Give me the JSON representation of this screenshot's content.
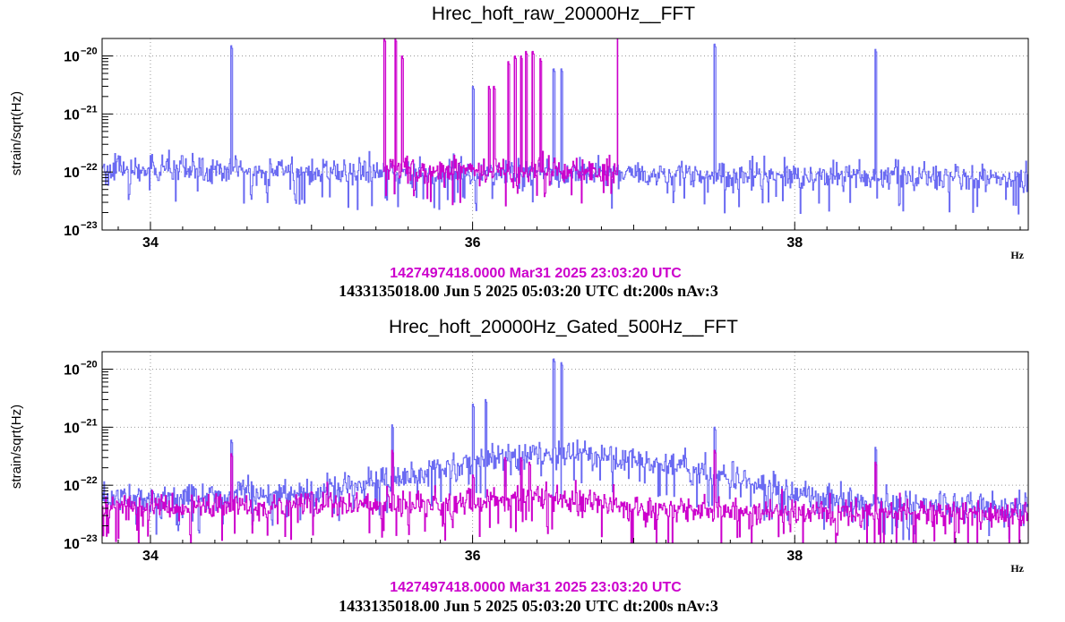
{
  "colors": {
    "reference": "#cc00cc",
    "current": "#6a6af2",
    "grid": "#9a9a9a"
  },
  "panels": [
    {
      "title": "Hrec_hoft_raw_20000Hz__FFT",
      "ylabel": "strain/sqrt(Hz)",
      "xunit": "Hz",
      "stamp_reference": "1427497418.0000 Mar31 2025 23:03:20 UTC",
      "stamp_current": "1433135018.00 Jun 5 2025 05:03:20 UTC dt:200s nAv:3"
    },
    {
      "title": "Hrec_hoft_20000Hz_Gated_500Hz__FFT",
      "ylabel": "strain/sqrt(Hz)",
      "xunit": "Hz",
      "stamp_reference": "1427497418.0000 Mar31 2025 23:03:20 UTC",
      "stamp_current": "1433135018.00 Jun 5 2025 05:03:20 UTC dt:200s nAv:3"
    }
  ],
  "chart_data": [
    {
      "type": "line",
      "title": "Hrec_hoft_raw_20000Hz__FFT",
      "xlabel": "Hz",
      "ylabel": "strain/sqrt(Hz)",
      "yscale": "log",
      "xlim": [
        33.7,
        39.45
      ],
      "ylim": [
        1e-23,
        2e-20
      ],
      "xticks": [
        34,
        36,
        38
      ],
      "xtick_labels": [
        "34",
        "36",
        "38"
      ],
      "yticks": [
        1e-23,
        1e-22,
        1e-21,
        1e-20
      ],
      "ytick_labels": [
        "10",
        "10",
        "10",
        "10"
      ],
      "ytick_exponents": [
        "−23",
        "−22",
        "−21",
        "−20"
      ],
      "grid": true,
      "series": [
        {
          "id": "current",
          "color": "#6a6af2",
          "x_range": [
            33.7,
            39.45
          ],
          "baseline": 9e-23,
          "baseline_trend": [
            [
              33.7,
              1.1e-22
            ],
            [
              36.0,
              9.5e-23
            ],
            [
              39.45,
              8e-23
            ]
          ],
          "peaks": [
            {
              "f": 34.5,
              "a": 1.5e-20
            },
            {
              "f": 36.0,
              "a": 3e-21
            },
            {
              "f": 36.5,
              "a": 6e-21
            },
            {
              "f": 36.55,
              "a": 6e-21
            },
            {
              "f": 37.5,
              "a": 1.6e-20
            },
            {
              "f": 38.5,
              "a": 1.3e-20
            }
          ]
        },
        {
          "id": "reference",
          "color": "#cc00cc",
          "x_range": [
            35.45,
            36.9
          ],
          "baseline": 1e-22,
          "baseline_trend": [
            [
              35.45,
              1.05e-22
            ],
            [
              36.9,
              1e-22
            ]
          ],
          "peaks": [
            {
              "f": 35.45,
              "a": 2e-20
            },
            {
              "f": 35.52,
              "a": 2e-20
            },
            {
              "f": 35.56,
              "a": 1e-20
            },
            {
              "f": 36.1,
              "a": 3e-21
            },
            {
              "f": 36.13,
              "a": 3e-21
            },
            {
              "f": 36.22,
              "a": 8e-21
            },
            {
              "f": 36.26,
              "a": 1e-20
            },
            {
              "f": 36.3,
              "a": 1e-20
            },
            {
              "f": 36.33,
              "a": 1.2e-20
            },
            {
              "f": 36.37,
              "a": 1.2e-20
            },
            {
              "f": 36.42,
              "a": 9e-21
            },
            {
              "f": 36.9,
              "a": 2e-20
            }
          ]
        }
      ]
    },
    {
      "type": "line",
      "title": "Hrec_hoft_20000Hz_Gated_500Hz__FFT",
      "xlabel": "Hz",
      "ylabel": "strain/sqrt(Hz)",
      "yscale": "log",
      "xlim": [
        33.7,
        39.45
      ],
      "ylim": [
        1e-23,
        2e-20
      ],
      "xticks": [
        34,
        36,
        38
      ],
      "xtick_labels": [
        "34",
        "36",
        "38"
      ],
      "yticks": [
        1e-23,
        1e-22,
        1e-21,
        1e-20
      ],
      "ytick_labels": [
        "10",
        "10",
        "10",
        "10"
      ],
      "ytick_exponents": [
        "−23",
        "−22",
        "−21",
        "−20"
      ],
      "grid": true,
      "series": [
        {
          "id": "current",
          "color": "#6a6af2",
          "x_range": [
            33.7,
            39.45
          ],
          "baseline": 6e-23,
          "baseline_trend": [
            [
              33.7,
              6e-23
            ],
            [
              35.0,
              7.5e-23
            ],
            [
              35.5,
              1.2e-22
            ],
            [
              36.0,
              2.5e-22
            ],
            [
              36.5,
              3.5e-22
            ],
            [
              37.0,
              2.8e-22
            ],
            [
              37.5,
              1.6e-22
            ],
            [
              38.0,
              7e-23
            ],
            [
              38.5,
              5e-23
            ],
            [
              39.45,
              4e-23
            ]
          ],
          "peaks": [
            {
              "f": 34.5,
              "a": 6e-22
            },
            {
              "f": 35.5,
              "a": 1.1e-21
            },
            {
              "f": 36.0,
              "a": 2.5e-21
            },
            {
              "f": 36.08,
              "a": 3e-21
            },
            {
              "f": 36.5,
              "a": 1.5e-20
            },
            {
              "f": 36.55,
              "a": 1.3e-20
            },
            {
              "f": 37.5,
              "a": 1e-21
            },
            {
              "f": 38.5,
              "a": 4.5e-22
            }
          ]
        },
        {
          "id": "reference",
          "color": "#cc00cc",
          "x_range": [
            33.7,
            39.45
          ],
          "baseline": 3.5e-23,
          "baseline_trend": [
            [
              33.7,
              4e-23
            ],
            [
              36.0,
              5e-23
            ],
            [
              36.3,
              7e-23
            ],
            [
              37.0,
              4e-23
            ],
            [
              39.45,
              3e-23
            ]
          ],
          "peaks": [
            {
              "f": 34.5,
              "a": 3.5e-22
            },
            {
              "f": 35.5,
              "a": 4e-22
            },
            {
              "f": 36.0,
              "a": 1.5e-22
            },
            {
              "f": 36.2,
              "a": 3e-22
            },
            {
              "f": 36.3,
              "a": 3e-22
            },
            {
              "f": 36.35,
              "a": 2.5e-22
            },
            {
              "f": 37.5,
              "a": 4e-22
            },
            {
              "f": 38.5,
              "a": 2.5e-22
            }
          ]
        }
      ]
    }
  ]
}
